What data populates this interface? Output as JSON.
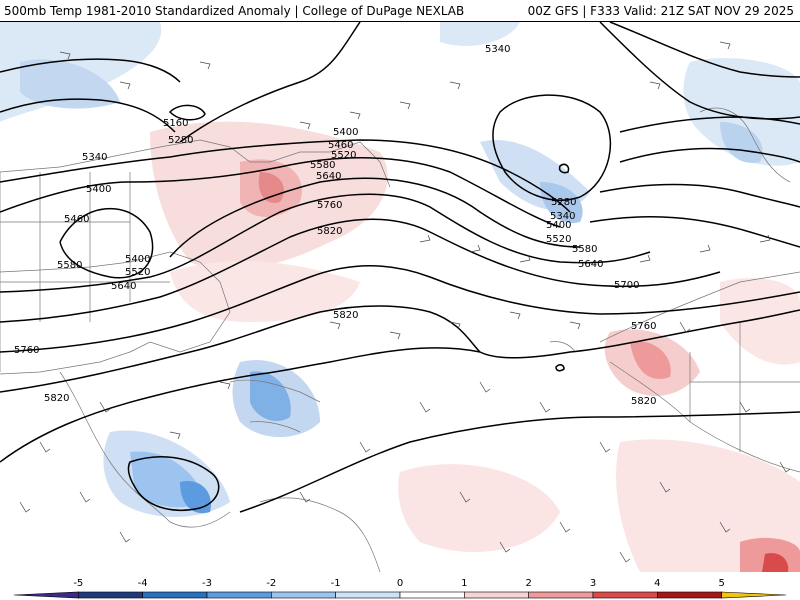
{
  "header": {
    "left_title": "500mb Temp 1981-2010 Standardized Anomaly | College of DuPage NEXLAB",
    "right_title": "00Z GFS | F333 Valid: 21Z SAT NOV 29 2025"
  },
  "contours": {
    "labels": [
      "5160",
      "5280",
      "5340",
      "5400",
      "5460",
      "5520",
      "5580",
      "5640",
      "5700",
      "5760",
      "5820"
    ]
  },
  "legend": {
    "ticks": [
      "-5",
      "-4",
      "-3",
      "-2",
      "-1",
      "0",
      "1",
      "2",
      "3",
      "4",
      "5"
    ],
    "colors": [
      "#3b2a8c",
      "#1f3a7a",
      "#2a6fc0",
      "#5d9be0",
      "#9cc4ee",
      "#cfe1f6",
      "#ffffff",
      "#f7d4d4",
      "#ee9a9a",
      "#d94a4a",
      "#a51818",
      "#f2c40f"
    ]
  }
}
